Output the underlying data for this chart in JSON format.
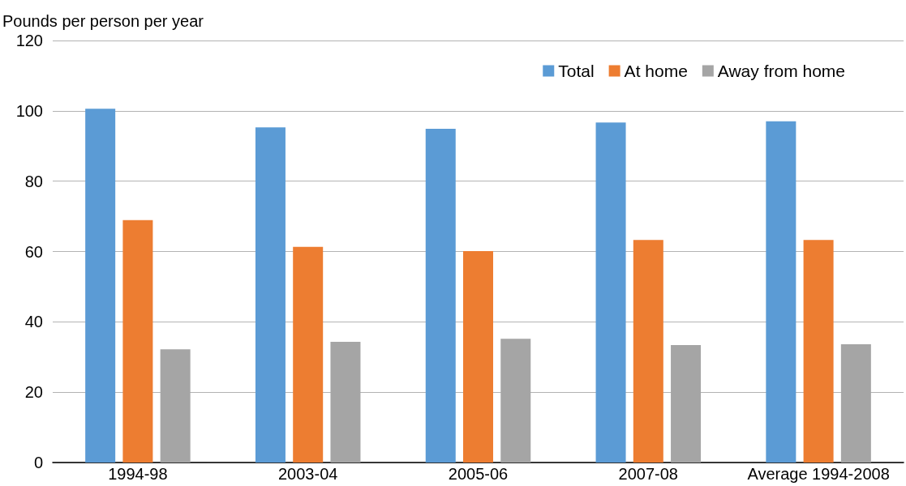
{
  "chart_data": {
    "type": "bar",
    "ylabel": "Pounds per person per year",
    "categories": [
      "1994-98",
      "2003-04",
      "2005-06",
      "2007-08",
      "Average 1994-2008"
    ],
    "series": [
      {
        "name": "Total",
        "color": "#5b9bd5",
        "values": [
          100.6,
          95.3,
          94.9,
          96.7,
          97.0
        ]
      },
      {
        "name": "At home",
        "color": "#ed7d31",
        "values": [
          68.9,
          61.3,
          60.1,
          63.3,
          63.3
        ]
      },
      {
        "name": "Away from home",
        "color": "#a5a5a5",
        "values": [
          32.2,
          34.3,
          35.2,
          33.4,
          33.6
        ]
      }
    ],
    "ylim": [
      0,
      120
    ],
    "yticks": [
      0,
      20,
      40,
      60,
      80,
      100,
      120
    ],
    "grid": "y",
    "legend": "top right"
  }
}
